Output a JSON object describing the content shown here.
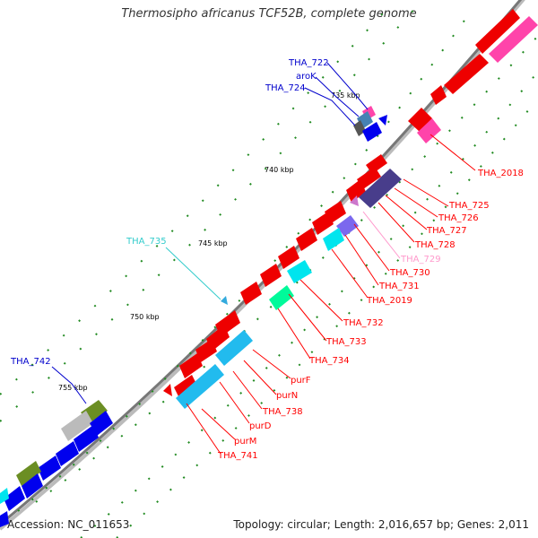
{
  "title": "Thermosipho africanus TCF52B, complete genome",
  "accession": "Accession: NC_011653",
  "topology": "Topology: circular; Length: 2,016,657 bp; Genes: 2,011",
  "ticks": [
    "735 kbp",
    "740 kbp",
    "745 kbp",
    "750 kbp",
    "755 kbp"
  ],
  "labels": {
    "tha722": "THA_722",
    "arok": "aroK",
    "tha724": "THA_724",
    "tha742": "THA_742",
    "tha735": "THA_735",
    "tha2018": "THA_2018",
    "tha725": "THA_725",
    "tha726": "THA_726",
    "tha727": "THA_727",
    "tha728": "THA_728",
    "tha729": "THA_729",
    "tha730": "THA_730",
    "tha731": "THA_731",
    "tha2019": "THA_2019",
    "tha732": "THA_732",
    "tha733": "THA_733",
    "tha734": "THA_734",
    "purf": "purF",
    "purn": "purN",
    "tha738": "THA_738",
    "purd": "purD",
    "purm": "purM",
    "tha741": "THA_741"
  },
  "colors": {
    "backbone": "#888888",
    "cds_red": "#ff0000",
    "cds_blue": "#0000ee",
    "label_dark_blue": "#0000cc",
    "label_cyan": "#33cccc",
    "label_pink": "#ff99cc",
    "magenta": "#ee3399",
    "dark_slate": "#483d8b",
    "olive": "#6b8e23",
    "gray": "#bbbbbb",
    "teal": "#00fa9a",
    "sky": "#22bbee"
  }
}
